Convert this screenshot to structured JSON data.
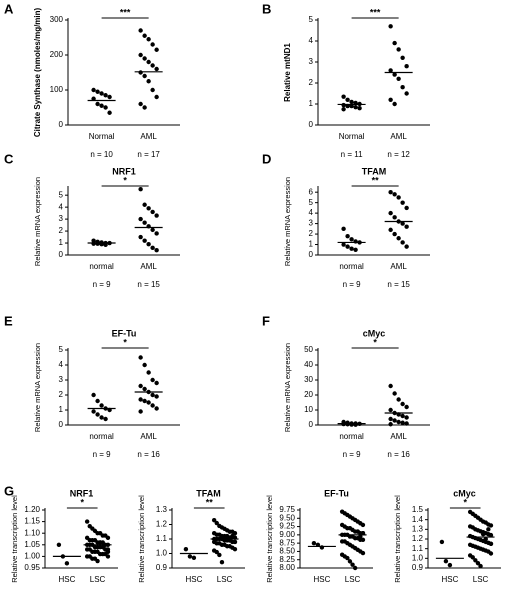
{
  "chart_data": [
    {
      "type": "dot",
      "panel": "A",
      "ylabel": "Citrate Synthase (nmoles/mg/min)",
      "categories": [
        "Normal",
        "AML"
      ],
      "n_labels": [
        "n = 10",
        "n = 17"
      ],
      "significance": "***",
      "values": [
        [
          100,
          95,
          90,
          85,
          80,
          75,
          60,
          55,
          50,
          35
        ],
        [
          270,
          255,
          245,
          230,
          215,
          200,
          190,
          180,
          170,
          160,
          150,
          140,
          125,
          100,
          80,
          60,
          50
        ]
      ],
      "means": [
        70,
        152
      ],
      "ylim": [
        0,
        300
      ],
      "yticks": [
        0,
        100,
        200,
        300
      ]
    },
    {
      "type": "dot",
      "panel": "B",
      "ylabel": "Relative mtND1",
      "categories": [
        "Normal",
        "AML"
      ],
      "n_labels": [
        "n = 11",
        "n = 12"
      ],
      "significance": "***",
      "values": [
        [
          1.35,
          1.2,
          1.1,
          1.05,
          1.0,
          0.95,
          0.9,
          0.9,
          0.85,
          0.8,
          0.75
        ],
        [
          4.7,
          3.9,
          3.6,
          3.2,
          2.8,
          2.6,
          2.4,
          2.2,
          1.8,
          1.5,
          1.2,
          1.0
        ]
      ],
      "means": [
        0.98,
        2.5
      ],
      "ylim": [
        0,
        5
      ],
      "yticks": [
        0,
        1,
        2,
        3,
        4,
        5
      ]
    },
    {
      "type": "dot",
      "panel": "C",
      "title": "NRF1",
      "ylabel": "Relative mRNA expression",
      "categories": [
        "normal",
        "AML"
      ],
      "n_labels": [
        "n = 9",
        "n = 15"
      ],
      "significance": "*",
      "values": [
        [
          1.2,
          1.1,
          1.05,
          1.0,
          1.0,
          0.95,
          0.95,
          0.9,
          0.85
        ],
        [
          5.5,
          4.2,
          3.9,
          3.6,
          3.3,
          3.0,
          2.7,
          2.4,
          2.1,
          1.8,
          1.5,
          1.2,
          0.9,
          0.6,
          0.4
        ]
      ],
      "means": [
        1.0,
        2.3
      ],
      "ylim": [
        0,
        5.6
      ],
      "yticks": [
        0,
        1,
        2,
        3,
        4,
        5
      ]
    },
    {
      "type": "dot",
      "panel": "D",
      "title": "TFAM",
      "ylabel": "Relative mRNA expression",
      "categories": [
        "normal",
        "AML"
      ],
      "n_labels": [
        "n = 9",
        "n = 15"
      ],
      "significance": "**",
      "values": [
        [
          2.5,
          1.8,
          1.5,
          1.3,
          1.2,
          1.0,
          0.8,
          0.6,
          0.5
        ],
        [
          6.0,
          5.8,
          5.5,
          5.0,
          4.5,
          4.0,
          3.6,
          3.2,
          3.0,
          2.7,
          2.4,
          2.0,
          1.6,
          1.2,
          0.8
        ]
      ],
      "means": [
        1.2,
        3.2
      ],
      "ylim": [
        0,
        6.4
      ],
      "yticks": [
        0,
        1,
        2,
        3,
        4,
        5,
        6
      ]
    },
    {
      "type": "dot",
      "panel": "E",
      "title": "EF-Tu",
      "ylabel": "Relative mRNA expression",
      "categories": [
        "normal",
        "AML"
      ],
      "n_labels": [
        "n = 9",
        "n = 16"
      ],
      "significance": "*",
      "values": [
        [
          2.0,
          1.6,
          1.3,
          1.1,
          1.0,
          0.9,
          0.7,
          0.5,
          0.4
        ],
        [
          4.5,
          4.0,
          3.5,
          3.0,
          2.8,
          2.6,
          2.4,
          2.2,
          2.0,
          1.9,
          1.7,
          1.6,
          1.5,
          1.3,
          1.1,
          0.9
        ]
      ],
      "means": [
        1.1,
        2.2
      ],
      "ylim": [
        0,
        5
      ],
      "yticks": [
        0,
        1,
        2,
        3,
        4,
        5
      ]
    },
    {
      "type": "dot",
      "panel": "F",
      "title": "cMyc",
      "ylabel": "Relative mRNA expression",
      "categories": [
        "normal",
        "AML"
      ],
      "n_labels": [
        "n = 9",
        "n = 16"
      ],
      "significance": "*",
      "values": [
        [
          2,
          1.5,
          1,
          1,
          0.8,
          0.6,
          0.5,
          0.3,
          0.2
        ],
        [
          26,
          21,
          17,
          14,
          12,
          10,
          8,
          7,
          6,
          5,
          4,
          3,
          2,
          1.5,
          1,
          0.5
        ]
      ],
      "means": [
        0.9,
        8
      ],
      "ylim": [
        0,
        50
      ],
      "yticks": [
        0,
        10,
        20,
        30,
        40,
        50
      ]
    },
    {
      "type": "dot",
      "panel": "G",
      "title": "NRF1",
      "ylabel": "Relative transcription level",
      "categories": [
        "HSC",
        "LSC"
      ],
      "significance": "*",
      "values": [
        [
          1.05,
          1.0,
          0.97
        ],
        [
          1.15,
          1.13,
          1.12,
          1.11,
          1.1,
          1.1,
          1.09,
          1.09,
          1.08,
          1.08,
          1.07,
          1.07,
          1.07,
          1.06,
          1.06,
          1.06,
          1.05,
          1.05,
          1.05,
          1.05,
          1.05,
          1.04,
          1.04,
          1.04,
          1.04,
          1.03,
          1.03,
          1.03,
          1.03,
          1.02,
          1.02,
          1.02,
          1.01,
          1.01,
          1.01,
          1.0,
          1.0,
          1.0,
          0.99,
          0.99,
          0.98,
          1.06,
          1.04,
          1.03,
          1.02
        ]
      ],
      "means": [
        1.0,
        1.05
      ],
      "ylim": [
        0.95,
        1.2
      ],
      "yticks": [
        0.95,
        {
          "value": 1,
          "label": "1.00"
        },
        1.05,
        {
          "value": 1.1,
          "label": "1.10"
        },
        1.15,
        {
          "value": 1.2,
          "label": "1.20"
        }
      ]
    },
    {
      "type": "dot",
      "title": "TFAM",
      "ylabel": "Relative transcription level",
      "categories": [
        "HSC",
        "LSC"
      ],
      "significance": "**",
      "values": [
        [
          1.03,
          0.98,
          0.97
        ],
        [
          1.23,
          1.21,
          1.19,
          1.18,
          1.17,
          1.16,
          1.15,
          1.15,
          1.14,
          1.14,
          1.13,
          1.13,
          1.12,
          1.12,
          1.12,
          1.11,
          1.11,
          1.11,
          1.1,
          1.1,
          1.1,
          1.1,
          1.09,
          1.09,
          1.09,
          1.08,
          1.08,
          1.08,
          1.07,
          1.07,
          1.06,
          1.06,
          1.05,
          1.05,
          1.04,
          1.03,
          1.02,
          1.01,
          0.99,
          0.94,
          1.1,
          1.11,
          1.09,
          1.12,
          1.08
        ]
      ],
      "means": [
        1.0,
        1.1
      ],
      "ylim": [
        0.9,
        1.3
      ],
      "yticks": [
        0.9,
        {
          "value": 1,
          "label": "1.0"
        },
        1.1,
        1.2,
        1.3
      ]
    },
    {
      "type": "dot",
      "title": "EF-Tu",
      "ylabel": "Relative transcription level",
      "categories": [
        "HSC",
        "LSC"
      ],
      "values": [
        [
          8.75,
          8.7,
          8.62
        ],
        [
          9.7,
          9.65,
          9.6,
          9.55,
          9.5,
          9.45,
          9.4,
          9.35,
          9.3,
          9.3,
          9.25,
          9.2,
          9.2,
          9.15,
          9.1,
          9.1,
          9.05,
          9.05,
          9.0,
          9.0,
          9.0,
          8.95,
          8.95,
          8.9,
          8.9,
          8.85,
          8.85,
          8.8,
          8.8,
          8.75,
          8.7,
          8.65,
          8.6,
          8.55,
          8.5,
          8.45,
          8.4,
          8.35,
          8.3,
          8.2,
          8.1,
          8.0,
          9.1,
          8.95,
          9.05
        ]
      ],
      "means": [
        8.65,
        9.0
      ],
      "ylim": [
        8.0,
        9.75
      ],
      "yticks": [
        {
          "value": 8,
          "label": "8.00"
        },
        8.25,
        {
          "value": 8.5,
          "label": "8.50"
        },
        8.75,
        {
          "value": 9,
          "label": "9.00"
        },
        9.25,
        {
          "value": 9.5,
          "label": "9.50"
        },
        9.75
      ]
    },
    {
      "type": "dot",
      "title": "cMyc",
      "ylabel": "Relative transcription level",
      "categories": [
        "HSC",
        "LSC"
      ],
      "significance": "*",
      "values": [
        [
          1.17,
          0.97,
          0.93
        ],
        [
          1.48,
          1.46,
          1.44,
          1.42,
          1.4,
          1.38,
          1.37,
          1.35,
          1.34,
          1.33,
          1.32,
          1.3,
          1.29,
          1.28,
          1.27,
          1.26,
          1.25,
          1.24,
          1.23,
          1.22,
          1.21,
          1.2,
          1.19,
          1.18,
          1.17,
          1.16,
          1.15,
          1.14,
          1.13,
          1.12,
          1.11,
          1.1,
          1.09,
          1.08,
          1.07,
          1.05,
          1.03,
          1.01,
          0.98,
          0.95,
          0.92,
          1.25,
          1.2,
          1.3,
          1.15
        ]
      ],
      "means": [
        1.0,
        1.22
      ],
      "ylim": [
        0.9,
        1.5
      ],
      "yticks": [
        0.9,
        {
          "value": 1,
          "label": "1.0"
        },
        1.1,
        1.2,
        1.3,
        1.4,
        1.5
      ]
    }
  ]
}
